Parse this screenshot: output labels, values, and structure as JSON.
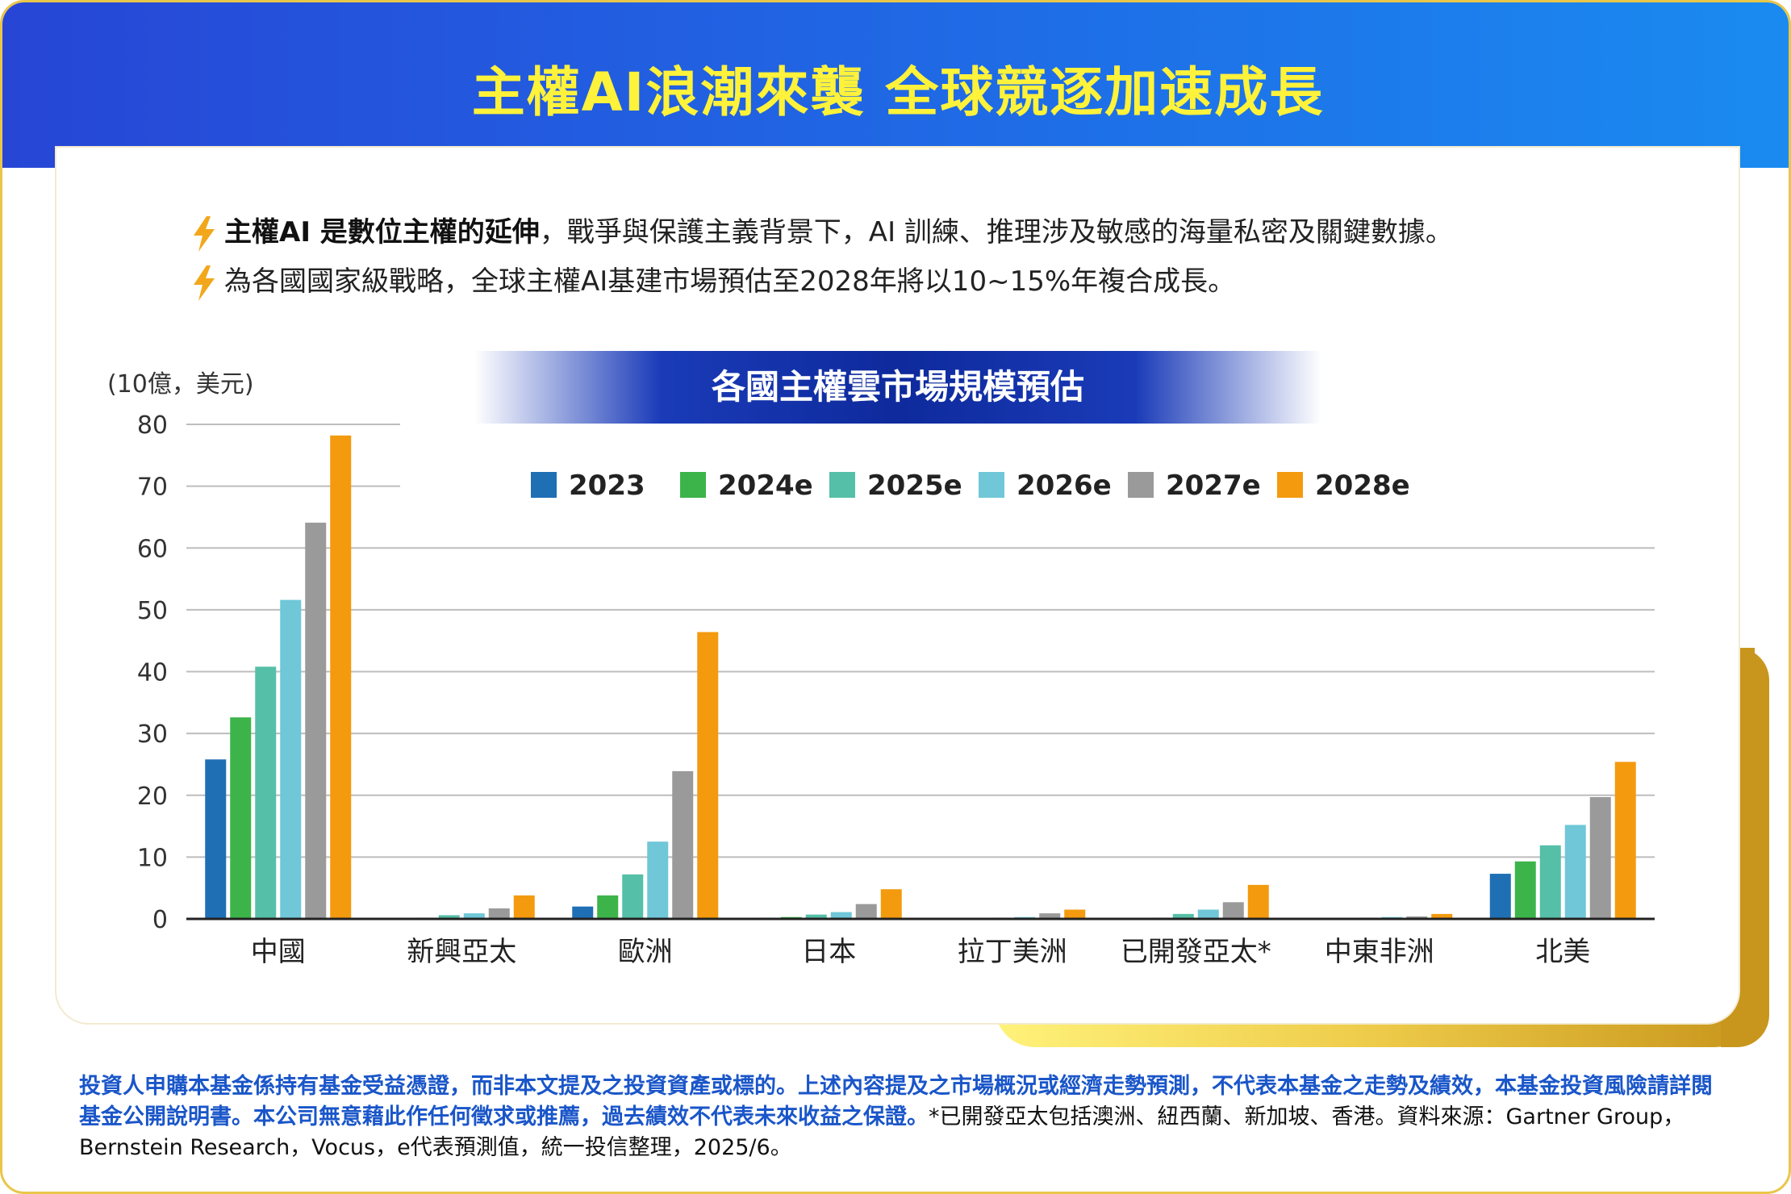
{
  "header": {
    "title": "主權AI浪潮來襲 全球競逐加速成長"
  },
  "bullets": [
    {
      "bold": "主權AI 是數位主權的延伸",
      "rest": "，戰爭與保護主義背景下，AI 訓練、推理涉及敏感的海量私密及關鍵數據。",
      "icon": "lightning-bolt-icon"
    },
    {
      "bold": "",
      "rest": "為各國國家級戰略，全球主權AI基建市場預估至2028年將以10~15%年複合成長。",
      "icon": "lightning-bolt-icon"
    }
  ],
  "chart_data": {
    "type": "bar",
    "title": "各國主權雲市場規模預估",
    "ylabel": "(10億，美元)",
    "ylim": [
      0,
      80
    ],
    "yticks": [
      0,
      10,
      20,
      30,
      40,
      50,
      60,
      70,
      80
    ],
    "grid": true,
    "legend_position": "top",
    "categories": [
      "中國",
      "新興亞太",
      "歐洲",
      "日本",
      "拉丁美洲",
      "已開發亞太*",
      "中東非洲",
      "北美"
    ],
    "series": [
      {
        "name": "2023",
        "color": "#1f6fb5",
        "values": [
          25.8,
          0.1,
          2.0,
          0.2,
          0.1,
          0.1,
          0.1,
          7.3
        ]
      },
      {
        "name": "2024e",
        "color": "#3cb44a",
        "values": [
          32.6,
          0.2,
          3.8,
          0.3,
          0.1,
          0.2,
          0.1,
          9.3
        ]
      },
      {
        "name": "2025e",
        "color": "#55bfa8",
        "values": [
          40.8,
          0.6,
          7.2,
          0.7,
          0.2,
          0.8,
          0.2,
          11.9
        ]
      },
      {
        "name": "2026e",
        "color": "#6fc7d8",
        "values": [
          51.6,
          0.9,
          12.5,
          1.1,
          0.3,
          1.5,
          0.3,
          15.2
        ]
      },
      {
        "name": "2027e",
        "color": "#9a9a9a",
        "values": [
          64.1,
          1.7,
          23.9,
          2.4,
          0.9,
          2.7,
          0.4,
          19.7
        ]
      },
      {
        "name": "2028e",
        "color": "#f39a0f",
        "values": [
          78.2,
          3.8,
          46.4,
          4.8,
          1.5,
          5.5,
          0.8,
          25.4
        ]
      }
    ]
  },
  "footer": {
    "blue_part": "投資人申購本基金係持有基金受益憑證，而非本文提及之投資資產或標的。上述內容提及之市場概況或經濟走勢預測，不代表本基金之走勢及績效，本基金投資風險請詳閱基金公開說明書。本公司無意藉此作任何徵求或推薦，過去績效不代表未來收益之保證。",
    "black_part": "*已開發亞太包括澳洲、紐西蘭、新加坡、香港。資料來源：Gartner Group，Bernstein Research，Vocus，e代表預測值，統一投信整理，2025/6。"
  },
  "colors": {
    "header_from": "#2746d6",
    "header_to": "#1a8bf0",
    "title": "#fff23a",
    "accent_gold": "#c8961c",
    "bolt": "#f2a71b"
  }
}
